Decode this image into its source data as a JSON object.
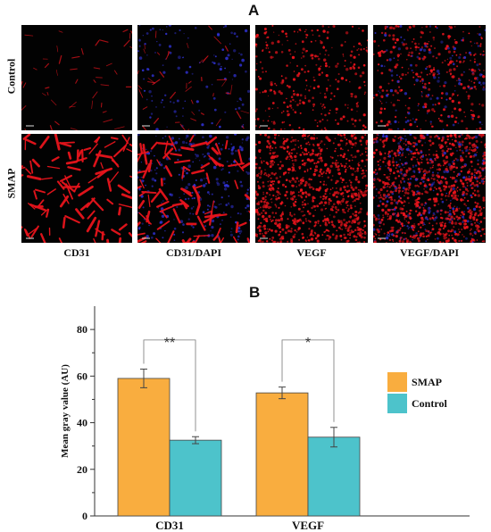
{
  "figure": {
    "panel_a_label": "A",
    "panel_b_label": "B",
    "rows": [
      {
        "label": "Control"
      },
      {
        "label": "SMAP"
      }
    ],
    "columns": [
      {
        "label": "CD31",
        "stain": "red vessel",
        "dapi": false
      },
      {
        "label": "CD31/DAPI",
        "stain": "red vessel",
        "dapi": true
      },
      {
        "label": "VEGF",
        "stain": "red dots",
        "dapi": false
      },
      {
        "label": "VEGF/DAPI",
        "stain": "red dots",
        "dapi": true
      }
    ],
    "stain_colors": {
      "red": "#e8141c",
      "blue": "#3a3cff",
      "background": "#020202"
    }
  },
  "chart_data": {
    "type": "bar",
    "categories": [
      "CD31",
      "VEGF"
    ],
    "series": [
      {
        "name": "SMAP",
        "values": [
          59,
          52.8
        ],
        "errors": [
          4,
          2.5
        ],
        "color": "#f9ad3f"
      },
      {
        "name": "Control",
        "values": [
          32.5,
          33.8
        ],
        "errors": [
          1.5,
          4.2
        ],
        "color": "#4dc3cb"
      }
    ],
    "ylabel": "Mean gray value (AU)",
    "ylim": [
      0,
      90
    ],
    "yticks": [
      0,
      20,
      40,
      60,
      80
    ],
    "minor_ticks": [
      10,
      30,
      50,
      70
    ],
    "significance": [
      "**",
      "*"
    ],
    "legend_position": "right",
    "grid": false
  }
}
